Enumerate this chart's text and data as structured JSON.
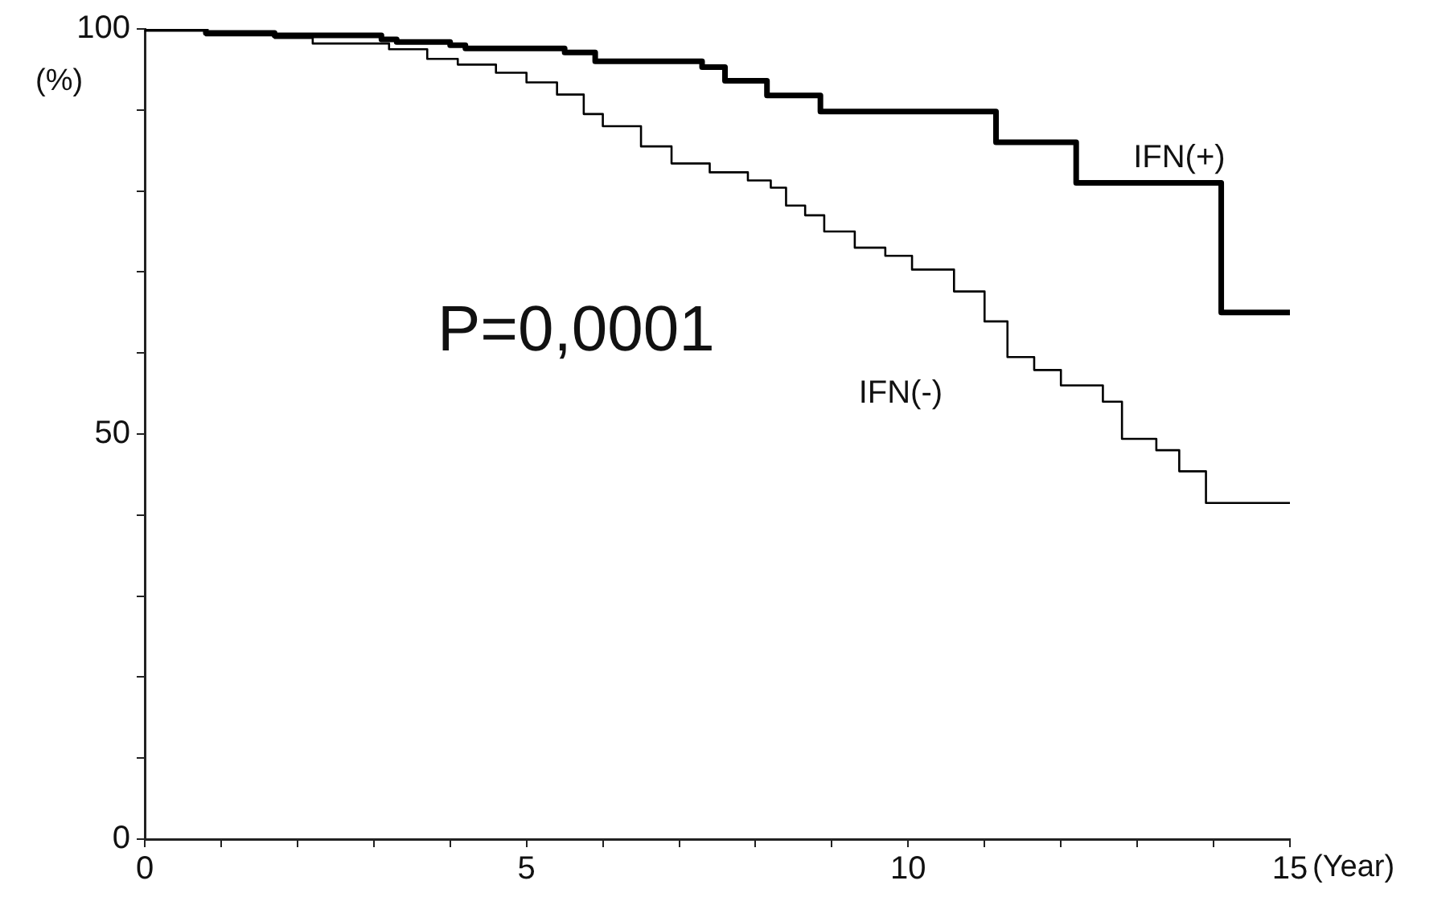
{
  "chart_data": {
    "type": "step",
    "xlabel": "(Year)",
    "ylabel": "(%)",
    "annotations": [
      "P=0,0001"
    ],
    "legend": false,
    "marker": "none",
    "xlim": [
      0,
      15
    ],
    "ylim": [
      0,
      100
    ],
    "xticks": [
      0,
      {
        "value": 1,
        "label": null
      },
      {
        "value": 2,
        "label": null
      },
      {
        "value": 3,
        "label": null
      },
      {
        "value": 4,
        "label": null
      },
      5,
      {
        "value": 6,
        "label": null
      },
      {
        "value": 7,
        "label": null
      },
      {
        "value": 8,
        "label": null
      },
      {
        "value": 9,
        "label": null
      },
      10,
      {
        "value": 11,
        "label": null
      },
      {
        "value": 12,
        "label": null
      },
      {
        "value": 13,
        "label": null
      },
      {
        "value": 14,
        "label": null
      },
      15
    ],
    "yticks": [
      0,
      {
        "value": 10,
        "label": null
      },
      {
        "value": 20,
        "label": null
      },
      {
        "value": 30,
        "label": null
      },
      {
        "value": 40,
        "label": null
      },
      50,
      {
        "value": 60,
        "label": null
      },
      {
        "value": 70,
        "label": null
      },
      {
        "value": 80,
        "label": null
      },
      {
        "value": 90,
        "label": null
      },
      100
    ],
    "series": [
      {
        "name": "IFN(+)",
        "color": "#000000",
        "x": [
          0,
          0.8,
          1.7,
          3.1,
          3.3,
          4.0,
          4.2,
          5.5,
          5.9,
          7.3,
          7.6,
          8.15,
          8.85,
          11.15,
          12.2,
          14.1,
          15
        ],
        "values": [
          100,
          99.5,
          99.2,
          98.7,
          98.4,
          98.0,
          97.6,
          97.1,
          96.0,
          95.3,
          93.6,
          91.8,
          89.8,
          86.0,
          81.0,
          65.0,
          65.0
        ]
      },
      {
        "name": "IFN(-)",
        "color": "#000000",
        "x": [
          0,
          0.8,
          1.7,
          2.2,
          3.2,
          3.7,
          4.1,
          4.6,
          5.0,
          5.4,
          5.75,
          6.0,
          6.5,
          6.9,
          7.4,
          7.9,
          8.2,
          8.4,
          8.65,
          8.9,
          9.3,
          9.7,
          10.05,
          10.6,
          11.0,
          11.3,
          11.65,
          12.0,
          12.55,
          12.8,
          13.25,
          13.55,
          13.9,
          15
        ],
        "values": [
          100,
          99.2,
          98.9,
          98.2,
          97.5,
          96.3,
          95.6,
          94.6,
          93.4,
          91.9,
          89.5,
          88.0,
          85.5,
          83.4,
          82.3,
          81.3,
          80.4,
          78.2,
          77.0,
          75.0,
          73.0,
          72.0,
          70.3,
          67.6,
          63.9,
          59.5,
          57.9,
          56.0,
          54.0,
          49.4,
          48.0,
          45.4,
          41.5,
          41.5
        ]
      }
    ]
  }
}
